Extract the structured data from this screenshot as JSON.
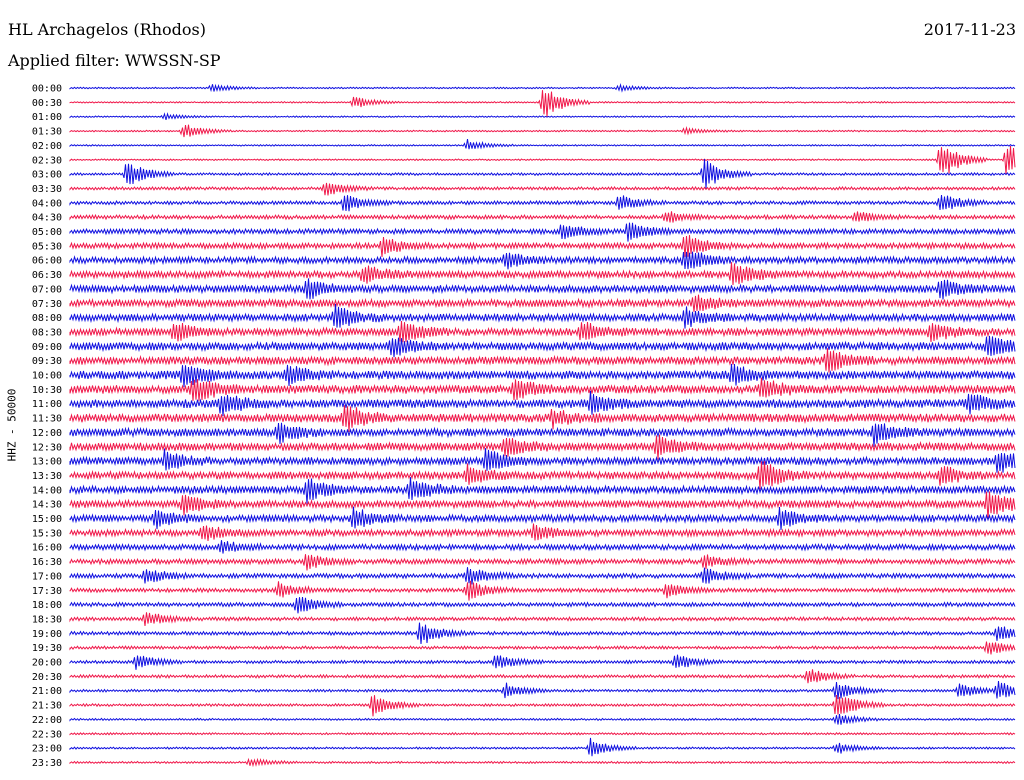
{
  "header": {
    "station": "HL Archagelos (Rhodos)",
    "date": "2017-11-23",
    "filter": "Applied filter: WWSSN-SP"
  },
  "chart_data": {
    "type": "line",
    "title": "HL Archagelos (Rhodos)",
    "ylabel": "HHZ - 50000",
    "row_labels": [
      "00:00",
      "00:30",
      "01:00",
      "01:30",
      "02:00",
      "02:30",
      "03:00",
      "03:30",
      "04:00",
      "04:30",
      "05:00",
      "05:30",
      "06:00",
      "06:30",
      "07:00",
      "07:30",
      "08:00",
      "08:30",
      "09:00",
      "09:30",
      "10:00",
      "10:30",
      "11:00",
      "11:30",
      "12:00",
      "12:30",
      "13:00",
      "13:30",
      "14:00",
      "14:30",
      "15:00",
      "15:30",
      "16:00",
      "16:30",
      "17:00",
      "17:30",
      "18:00",
      "18:30",
      "19:00",
      "19:30",
      "20:00",
      "20:30",
      "21:00",
      "21:30",
      "22:00",
      "22:30",
      "23:00",
      "23:30"
    ],
    "row_minutes": 30,
    "colors": [
      "#1010e0",
      "#f0184a"
    ],
    "noise_level": [
      0.6,
      0.6,
      0.6,
      0.6,
      0.6,
      0.6,
      1,
      1.2,
      1.4,
      1.6,
      2,
      2.2,
      2.6,
      2.8,
      3,
      3,
      3,
      3,
      3.2,
      3.2,
      3.4,
      3.4,
      3.4,
      3.4,
      3.2,
      3.2,
      3,
      3,
      3,
      3,
      2.8,
      2.6,
      2.2,
      2,
      1.8,
      1.6,
      1.6,
      1.4,
      1.4,
      1.2,
      1.2,
      1.2,
      1,
      1,
      0.8,
      0.8,
      0.8,
      0.8
    ],
    "events": [
      {
        "row": 0,
        "t": 0.15,
        "amp": 4
      },
      {
        "row": 0,
        "t": 0.58,
        "amp": 3
      },
      {
        "row": 1,
        "t": 0.3,
        "amp": 6
      },
      {
        "row": 1,
        "t": 0.5,
        "amp": 18
      },
      {
        "row": 2,
        "t": 0.1,
        "amp": 3
      },
      {
        "row": 3,
        "t": 0.12,
        "amp": 8
      },
      {
        "row": 3,
        "t": 0.65,
        "amp": 3
      },
      {
        "row": 4,
        "t": 0.42,
        "amp": 6
      },
      {
        "row": 5,
        "t": 0.92,
        "amp": 22
      },
      {
        "row": 5,
        "t": 0.99,
        "amp": 18
      },
      {
        "row": 6,
        "t": 0.06,
        "amp": 14
      },
      {
        "row": 6,
        "t": 0.67,
        "amp": 16
      },
      {
        "row": 7,
        "t": 0.27,
        "amp": 8
      },
      {
        "row": 8,
        "t": 0.29,
        "amp": 10
      },
      {
        "row": 8,
        "t": 0.58,
        "amp": 8
      },
      {
        "row": 8,
        "t": 0.92,
        "amp": 10
      },
      {
        "row": 9,
        "t": 0.63,
        "amp": 6
      },
      {
        "row": 9,
        "t": 0.83,
        "amp": 6
      },
      {
        "row": 10,
        "t": 0.52,
        "amp": 8
      },
      {
        "row": 10,
        "t": 0.59,
        "amp": 10
      },
      {
        "row": 11,
        "t": 0.33,
        "amp": 10
      },
      {
        "row": 11,
        "t": 0.65,
        "amp": 12
      },
      {
        "row": 12,
        "t": 0.65,
        "amp": 12
      },
      {
        "row": 12,
        "t": 0.46,
        "amp": 8
      },
      {
        "row": 13,
        "t": 0.31,
        "amp": 10
      },
      {
        "row": 13,
        "t": 0.7,
        "amp": 12
      },
      {
        "row": 14,
        "t": 0.25,
        "amp": 10
      },
      {
        "row": 14,
        "t": 0.92,
        "amp": 10
      },
      {
        "row": 15,
        "t": 0.66,
        "amp": 8
      },
      {
        "row": 16,
        "t": 0.28,
        "amp": 12
      },
      {
        "row": 16,
        "t": 0.65,
        "amp": 10
      },
      {
        "row": 17,
        "t": 0.11,
        "amp": 10
      },
      {
        "row": 17,
        "t": 0.35,
        "amp": 12
      },
      {
        "row": 17,
        "t": 0.54,
        "amp": 10
      },
      {
        "row": 17,
        "t": 0.91,
        "amp": 10
      },
      {
        "row": 18,
        "t": 0.34,
        "amp": 10
      },
      {
        "row": 18,
        "t": 0.97,
        "amp": 12
      },
      {
        "row": 19,
        "t": 0.8,
        "amp": 14
      },
      {
        "row": 20,
        "t": 0.12,
        "amp": 12
      },
      {
        "row": 20,
        "t": 0.23,
        "amp": 10
      },
      {
        "row": 20,
        "t": 0.7,
        "amp": 10
      },
      {
        "row": 21,
        "t": 0.13,
        "amp": 14
      },
      {
        "row": 21,
        "t": 0.47,
        "amp": 10
      },
      {
        "row": 21,
        "t": 0.73,
        "amp": 10
      },
      {
        "row": 22,
        "t": 0.16,
        "amp": 10
      },
      {
        "row": 22,
        "t": 0.55,
        "amp": 10
      },
      {
        "row": 22,
        "t": 0.95,
        "amp": 10
      },
      {
        "row": 23,
        "t": 0.29,
        "amp": 14
      },
      {
        "row": 23,
        "t": 0.51,
        "amp": 8
      },
      {
        "row": 24,
        "t": 0.22,
        "amp": 10
      },
      {
        "row": 24,
        "t": 0.85,
        "amp": 12
      },
      {
        "row": 25,
        "t": 0.46,
        "amp": 10
      },
      {
        "row": 25,
        "t": 0.62,
        "amp": 10
      },
      {
        "row": 26,
        "t": 0.1,
        "amp": 10
      },
      {
        "row": 26,
        "t": 0.44,
        "amp": 12
      },
      {
        "row": 26,
        "t": 0.98,
        "amp": 12
      },
      {
        "row": 27,
        "t": 0.42,
        "amp": 10
      },
      {
        "row": 27,
        "t": 0.73,
        "amp": 16
      },
      {
        "row": 27,
        "t": 0.92,
        "amp": 10
      },
      {
        "row": 28,
        "t": 0.25,
        "amp": 12
      },
      {
        "row": 28,
        "t": 0.36,
        "amp": 12
      },
      {
        "row": 29,
        "t": 0.12,
        "amp": 10
      },
      {
        "row": 29,
        "t": 0.97,
        "amp": 14
      },
      {
        "row": 30,
        "t": 0.09,
        "amp": 10
      },
      {
        "row": 30,
        "t": 0.3,
        "amp": 10
      },
      {
        "row": 30,
        "t": 0.75,
        "amp": 10
      },
      {
        "row": 31,
        "t": 0.14,
        "amp": 8
      },
      {
        "row": 31,
        "t": 0.49,
        "amp": 8
      },
      {
        "row": 32,
        "t": 0.16,
        "amp": 6
      },
      {
        "row": 33,
        "t": 0.25,
        "amp": 8
      },
      {
        "row": 33,
        "t": 0.67,
        "amp": 6
      },
      {
        "row": 34,
        "t": 0.08,
        "amp": 8
      },
      {
        "row": 34,
        "t": 0.42,
        "amp": 10
      },
      {
        "row": 34,
        "t": 0.67,
        "amp": 8
      },
      {
        "row": 35,
        "t": 0.22,
        "amp": 8
      },
      {
        "row": 35,
        "t": 0.42,
        "amp": 10
      },
      {
        "row": 35,
        "t": 0.63,
        "amp": 8
      },
      {
        "row": 36,
        "t": 0.24,
        "amp": 10
      },
      {
        "row": 37,
        "t": 0.08,
        "amp": 8
      },
      {
        "row": 38,
        "t": 0.37,
        "amp": 12
      },
      {
        "row": 38,
        "t": 0.98,
        "amp": 8
      },
      {
        "row": 39,
        "t": 0.97,
        "amp": 8
      },
      {
        "row": 40,
        "t": 0.07,
        "amp": 8
      },
      {
        "row": 40,
        "t": 0.45,
        "amp": 8
      },
      {
        "row": 40,
        "t": 0.64,
        "amp": 8
      },
      {
        "row": 41,
        "t": 0.78,
        "amp": 8
      },
      {
        "row": 42,
        "t": 0.46,
        "amp": 8
      },
      {
        "row": 42,
        "t": 0.81,
        "amp": 10
      },
      {
        "row": 42,
        "t": 0.94,
        "amp": 8
      },
      {
        "row": 42,
        "t": 0.98,
        "amp": 10
      },
      {
        "row": 43,
        "t": 0.32,
        "amp": 12
      },
      {
        "row": 43,
        "t": 0.81,
        "amp": 16
      },
      {
        "row": 44,
        "t": 0.81,
        "amp": 6
      },
      {
        "row": 46,
        "t": 0.55,
        "amp": 10
      },
      {
        "row": 46,
        "t": 0.81,
        "amp": 6
      },
      {
        "row": 47,
        "t": 0.19,
        "amp": 4
      }
    ]
  }
}
